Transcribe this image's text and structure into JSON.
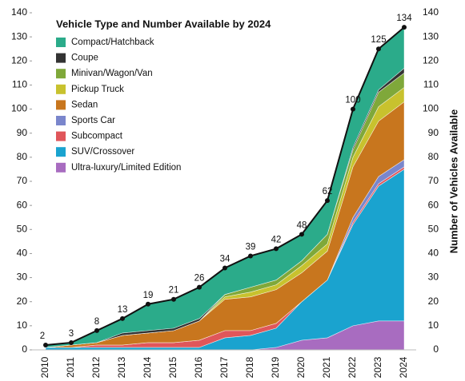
{
  "chart_data": {
    "type": "stacked_area",
    "title": "Vehicle Type and Number Available by 2024",
    "y2label": "Number of Vehicles Available",
    "categories": [
      "2010",
      "2011",
      "2012",
      "2013",
      "2014",
      "2015",
      "2016",
      "2017",
      "2018",
      "2019",
      "2020",
      "2021",
      "2022",
      "2023",
      "2024"
    ],
    "series": [
      {
        "name": "Compact/Hatchback",
        "color": "#2bab8a",
        "values": [
          1,
          1,
          5,
          6,
          11,
          12,
          13,
          11,
          13,
          13,
          11,
          14,
          16,
          17,
          17
        ]
      },
      {
        "name": "Coupe",
        "color": "#333333",
        "values": [
          0,
          0,
          0,
          1,
          1,
          1,
          1,
          0,
          0,
          0,
          0,
          0,
          1,
          1,
          2
        ]
      },
      {
        "name": "Minivan/Wagon/Van",
        "color": "#7fa83a",
        "values": [
          0,
          0,
          0,
          0,
          0,
          0,
          0,
          1,
          2,
          2,
          2,
          4,
          3,
          6,
          6
        ]
      },
      {
        "name": "Pickup Truck",
        "color": "#c8c22e",
        "values": [
          0,
          0,
          0,
          0,
          0,
          0,
          0,
          1,
          2,
          2,
          3,
          3,
          4,
          6,
          6
        ]
      },
      {
        "name": "Sedan",
        "color": "#c8761e",
        "values": [
          0,
          1,
          1,
          4,
          4,
          5,
          8,
          13,
          14,
          14,
          12,
          12,
          21,
          23,
          24
        ]
      },
      {
        "name": "Sports Car",
        "color": "#7a86cc",
        "values": [
          0,
          0,
          0,
          0,
          0,
          0,
          0,
          0,
          0,
          0,
          0,
          0,
          2,
          3,
          3
        ]
      },
      {
        "name": "Subcompact",
        "color": "#e0565a",
        "values": [
          0,
          0,
          1,
          1,
          2,
          2,
          3,
          3,
          2,
          2,
          0,
          0,
          1,
          1,
          1
        ]
      },
      {
        "name": "SUV/Crossover",
        "color": "#1aa3cf",
        "values": [
          1,
          1,
          1,
          1,
          1,
          1,
          1,
          5,
          6,
          8,
          16,
          24,
          42,
          56,
          63
        ]
      },
      {
        "name": "Ultra-luxury/Limited Edition",
        "color": "#a86cc0",
        "values": [
          0,
          0,
          0,
          0,
          0,
          0,
          0,
          0,
          0,
          1,
          4,
          5,
          10,
          12,
          12
        ]
      }
    ],
    "totals": [
      2,
      3,
      8,
      13,
      19,
      21,
      26,
      34,
      39,
      42,
      48,
      62,
      100,
      125,
      134
    ],
    "ylim": [
      0,
      140
    ],
    "yticks": [
      0,
      10,
      20,
      30,
      40,
      50,
      60,
      70,
      80,
      90,
      100,
      110,
      120,
      130,
      140
    ],
    "y2lim": [
      0,
      140
    ],
    "y2ticks": [
      0,
      10,
      20,
      30,
      40,
      50,
      60,
      70,
      80,
      90,
      100,
      110,
      120,
      130,
      140
    ],
    "legend": "upper left"
  }
}
